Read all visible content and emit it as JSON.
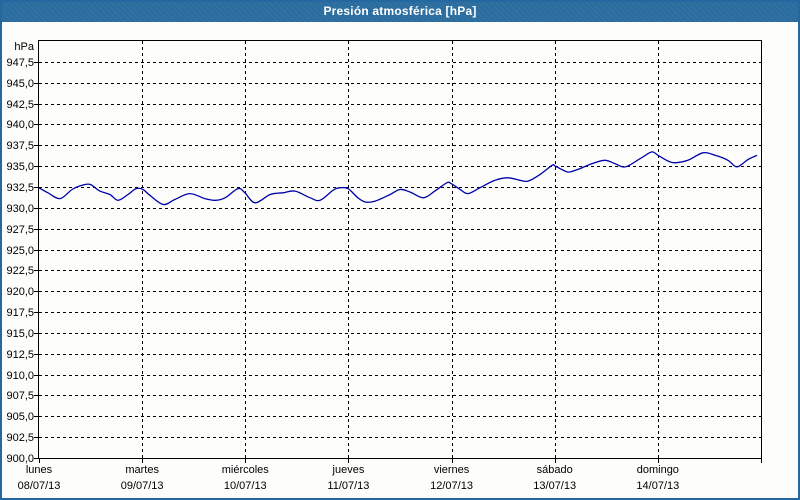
{
  "window": {
    "title": "Presión atmosférica [hPa]"
  },
  "colors": {
    "titlebar": "#2a6d9e",
    "frame": "#2368a0",
    "curve": "#0000aa",
    "grid": "#000000",
    "background": "#fdfefb"
  },
  "y_axis": {
    "unit": "hPa",
    "labels": [
      "947,5",
      "945,0",
      "942,5",
      "940,0",
      "937,5",
      "935,0",
      "932,5",
      "930,0",
      "927,5",
      "925,0",
      "922,5",
      "920,0",
      "917,5",
      "915,0",
      "912,5",
      "910,0",
      "907,5",
      "905,0",
      "902,5",
      "900,0"
    ]
  },
  "x_axis": {
    "days": [
      {
        "name": "lunes",
        "date": "08/07/13"
      },
      {
        "name": "martes",
        "date": "09/07/13"
      },
      {
        "name": "miércoles",
        "date": "10/07/13"
      },
      {
        "name": "jueves",
        "date": "11/07/13"
      },
      {
        "name": "viernes",
        "date": "12/07/13"
      },
      {
        "name": "sábado",
        "date": "13/07/13"
      },
      {
        "name": "domingo",
        "date": "14/07/13"
      }
    ]
  },
  "chart_data": {
    "type": "line",
    "title": "Presión atmosférica [hPa]",
    "ylabel": "hPa",
    "ylim": [
      900,
      950
    ],
    "ytick_step": 2.5,
    "x_range_days": 7,
    "x_unit": "hours since lunes 08/07/13 00:00",
    "grid": true,
    "legend": "none",
    "series": [
      {
        "name": "Presión atmosférica",
        "color": "#0000aa",
        "points": [
          [
            0,
            932.4
          ],
          [
            2.1,
            931.8
          ],
          [
            4.9,
            931.1
          ],
          [
            7.7,
            932.2
          ],
          [
            10,
            932.7
          ],
          [
            11.9,
            932.8
          ],
          [
            14.2,
            932.0
          ],
          [
            16.5,
            931.6
          ],
          [
            18.4,
            930.9
          ],
          [
            20.7,
            931.6
          ],
          [
            22.6,
            932.3
          ],
          [
            24.2,
            932.2
          ],
          [
            25.8,
            931.5
          ],
          [
            28.9,
            930.4
          ],
          [
            31.6,
            931.0
          ],
          [
            35.1,
            931.7
          ],
          [
            38.6,
            931.1
          ],
          [
            41,
            930.9
          ],
          [
            43.3,
            931.2
          ],
          [
            46.3,
            932.3
          ],
          [
            47.9,
            931.8
          ],
          [
            50.3,
            930.6
          ],
          [
            53.8,
            931.6
          ],
          [
            56.8,
            931.8
          ],
          [
            59.6,
            932.0
          ],
          [
            63.1,
            931.2
          ],
          [
            65.4,
            930.9
          ],
          [
            68.4,
            932.1
          ],
          [
            70,
            932.4
          ],
          [
            71.9,
            932.3
          ],
          [
            74.2,
            931.2
          ],
          [
            75.9,
            930.7
          ],
          [
            78.2,
            930.8
          ],
          [
            81.7,
            931.6
          ],
          [
            84,
            932.2
          ],
          [
            86.3,
            931.9
          ],
          [
            89.4,
            931.2
          ],
          [
            92.1,
            932.0
          ],
          [
            94.9,
            933.0
          ],
          [
            95.9,
            932.9
          ],
          [
            98,
            932.2
          ],
          [
            99.8,
            931.7
          ],
          [
            102.6,
            932.4
          ],
          [
            106.1,
            933.3
          ],
          [
            109.1,
            933.6
          ],
          [
            111.9,
            933.3
          ],
          [
            113.8,
            933.2
          ],
          [
            116.6,
            934.0
          ],
          [
            119.4,
            935.1
          ],
          [
            120.1,
            935.0
          ],
          [
            122.4,
            934.4
          ],
          [
            123.6,
            934.3
          ],
          [
            125.9,
            934.7
          ],
          [
            128.7,
            935.3
          ],
          [
            131.7,
            935.7
          ],
          [
            134,
            935.3
          ],
          [
            136.4,
            934.9
          ],
          [
            139.9,
            935.9
          ],
          [
            142.6,
            936.7
          ],
          [
            144,
            936.3
          ],
          [
            146.4,
            935.6
          ],
          [
            148,
            935.4
          ],
          [
            151,
            935.7
          ],
          [
            154.5,
            936.6
          ],
          [
            157.3,
            936.3
          ],
          [
            160.3,
            935.7
          ],
          [
            162.4,
            934.9
          ],
          [
            165,
            935.8
          ],
          [
            167.1,
            936.3
          ]
        ]
      }
    ]
  }
}
